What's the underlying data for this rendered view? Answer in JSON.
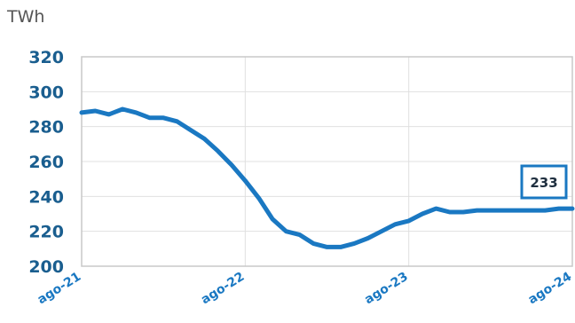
{
  "unit_label": "TWh",
  "colors": {
    "line": "#1a78c2",
    "axis_text": "#1a5e8f",
    "label_box": "#1a78c2",
    "grid": "#e0e0e0"
  },
  "chart_data": {
    "type": "line",
    "title": "",
    "xlabel": "",
    "ylabel": "TWh",
    "ylim": [
      200,
      320
    ],
    "yticks": [
      200,
      220,
      240,
      260,
      280,
      300,
      320
    ],
    "xticks": [
      {
        "label": "ago-21",
        "x": 0
      },
      {
        "label": "ago-22",
        "x": 12
      },
      {
        "label": "ago-23",
        "x": 24
      },
      {
        "label": "ago-24",
        "x": 36
      }
    ],
    "grid": true,
    "series": [
      {
        "x": [
          0,
          1,
          2,
          3,
          4,
          5,
          6,
          7,
          8,
          9,
          10,
          11,
          12,
          13,
          14,
          15,
          16,
          17,
          18,
          19,
          20,
          21,
          22,
          23,
          24,
          25,
          26,
          27,
          28,
          29,
          30,
          31,
          32,
          33,
          34,
          35,
          36
        ],
        "values": [
          288,
          289,
          287,
          290,
          288,
          285,
          285,
          283,
          278,
          273,
          266,
          258,
          249,
          239,
          227,
          220,
          218,
          213,
          211,
          211,
          213,
          216,
          220,
          224,
          226,
          230,
          233,
          231,
          231,
          232,
          232,
          232,
          232,
          232,
          232,
          233,
          233
        ]
      }
    ],
    "end_label": "233"
  }
}
